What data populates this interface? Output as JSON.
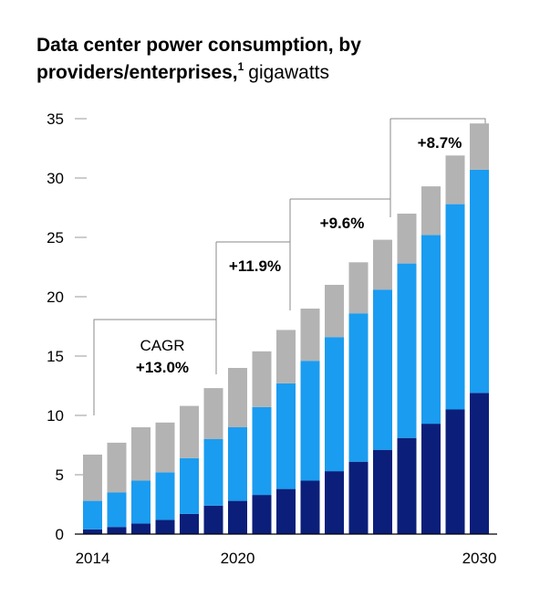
{
  "chart_data": {
    "type": "bar",
    "stacked": true,
    "title_line1": "Data center power consumption, by",
    "title_line2_bold": "providers/enterprises,",
    "title_footnote": "1",
    "title_line2_regular": "gigawatts",
    "ylim": [
      0,
      35
    ],
    "yticks": [
      0,
      5,
      10,
      15,
      20,
      25,
      30,
      35
    ],
    "x": [
      2014,
      2015,
      2016,
      2017,
      2018,
      2019,
      2020,
      2021,
      2022,
      2023,
      2024,
      2025,
      2026,
      2027,
      2028,
      2029,
      2030
    ],
    "xtick_labels": [
      {
        "index": 0,
        "label": "2014"
      },
      {
        "index": 6,
        "label": "2020"
      },
      {
        "index": 16,
        "label": "2030"
      }
    ],
    "series": [
      {
        "color": "#0b1f7a",
        "values": [
          0.4,
          0.6,
          0.9,
          1.2,
          1.7,
          2.4,
          2.8,
          3.3,
          3.8,
          4.5,
          5.3,
          6.1,
          7.1,
          8.1,
          9.3,
          10.5,
          11.9
        ]
      },
      {
        "color": "#1a9cf0",
        "values": [
          2.4,
          2.9,
          3.6,
          4.0,
          4.7,
          5.6,
          6.2,
          7.4,
          8.9,
          10.1,
          11.3,
          12.5,
          13.5,
          14.7,
          15.9,
          17.3,
          18.8
        ]
      },
      {
        "color": "#b3b3b3",
        "values": [
          3.9,
          4.2,
          4.5,
          4.2,
          4.4,
          4.3,
          5.0,
          4.7,
          4.5,
          4.4,
          4.4,
          4.3,
          4.2,
          4.2,
          4.1,
          4.1,
          3.9
        ]
      }
    ],
    "cagr_brackets": [
      {
        "from": 0,
        "to": 5,
        "label_top": "CAGR",
        "label": "+13.0%"
      },
      {
        "from": 5,
        "to": 8,
        "label_top": "",
        "label": "+11.9%"
      },
      {
        "from": 8,
        "to": 12,
        "label_top": "",
        "label": "+9.6%"
      },
      {
        "from": 12,
        "to": 16,
        "label_top": "",
        "label": "+8.7%"
      }
    ]
  }
}
